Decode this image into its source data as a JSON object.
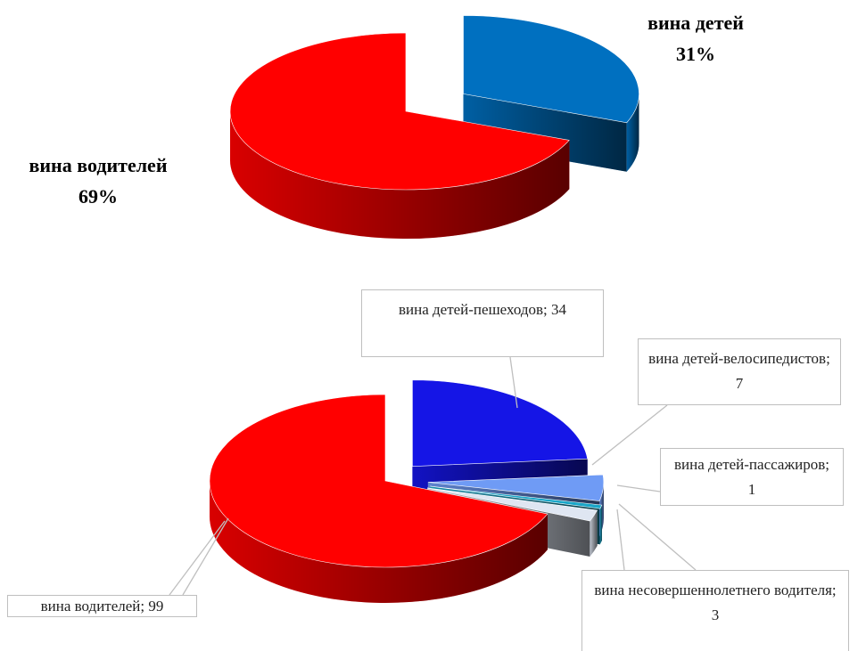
{
  "chart_data": [
    {
      "type": "pie",
      "categories": [
        "вина детей",
        "вина водителей"
      ],
      "values": [
        31,
        69
      ],
      "value_labels": [
        "31%",
        "69%"
      ],
      "colors": [
        "#0070c0",
        "#ff0000"
      ]
    },
    {
      "type": "pie",
      "values": [
        34,
        7,
        1,
        3,
        99
      ],
      "value_labels": [
        "вина детей-пешеходов; 34",
        "вина детей-велосипедистов; 7",
        "вина детей-пассажиров; 1",
        "вина несовершеннолетнего водителя; 3",
        "вина водителей; 99"
      ],
      "colors": [
        "#1515e6",
        "#6f9bf5",
        "#1aa6c8",
        "#dfe6f2",
        "#ff0000"
      ]
    }
  ]
}
